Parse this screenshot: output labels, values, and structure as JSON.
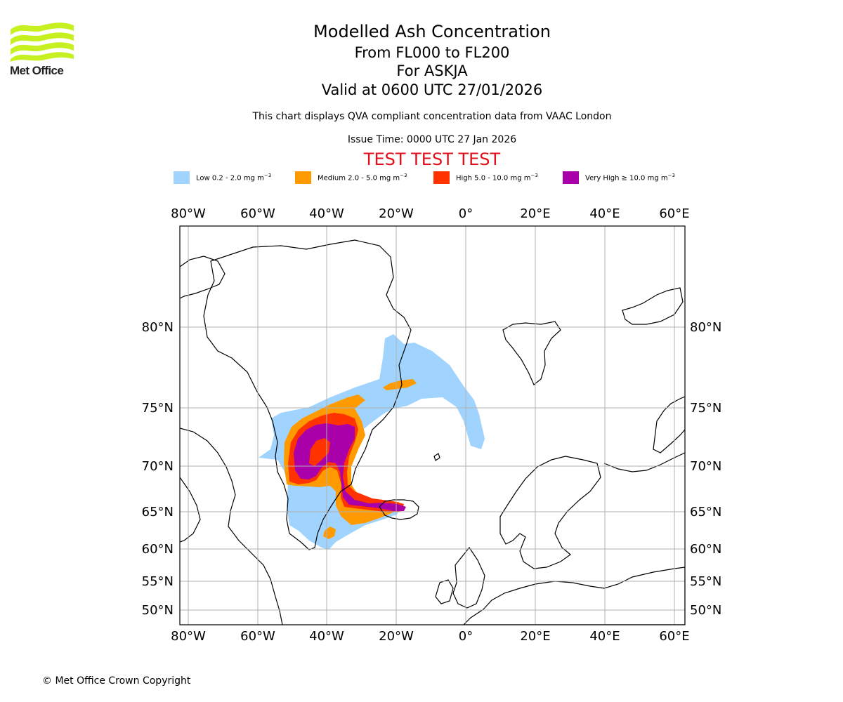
{
  "logo": {
    "text": "Met Office"
  },
  "header": {
    "title": "Modelled Ash Concentration",
    "levels": "From FL000 to FL200",
    "volcano": "For ASKJA",
    "valid": "Valid at 0600 UTC 27/01/2026",
    "note": "This chart displays QVA compliant concentration data from VAAC London",
    "issue": "Issue Time: 0000 UTC 27 Jan 2026",
    "test_banner": "TEST TEST TEST"
  },
  "legend": [
    {
      "label": "Low 0.2 - 2.0 mg m",
      "color": "#a0d4ff"
    },
    {
      "label": "Medium 2.0 - 5.0 mg m",
      "color": "#ff9b00"
    },
    {
      "label": "High 5.0 - 10.0 mg m",
      "color": "#ff3300"
    },
    {
      "label": "Very High ≥ 10.0 mg m",
      "color": "#aa00aa"
    }
  ],
  "legend_unit_sup": "−3",
  "map": {
    "lon_labels": [
      "80°W",
      "60°W",
      "40°W",
      "20°W",
      "0°",
      "20°E",
      "40°E",
      "60°E"
    ],
    "lat_labels": [
      "80°N",
      "75°N",
      "70°N",
      "65°N",
      "60°N",
      "55°N",
      "50°N"
    ],
    "grid_color": "#b0b0b0"
  },
  "footer": {
    "copyright": "© Met Office Crown Copyright"
  }
}
